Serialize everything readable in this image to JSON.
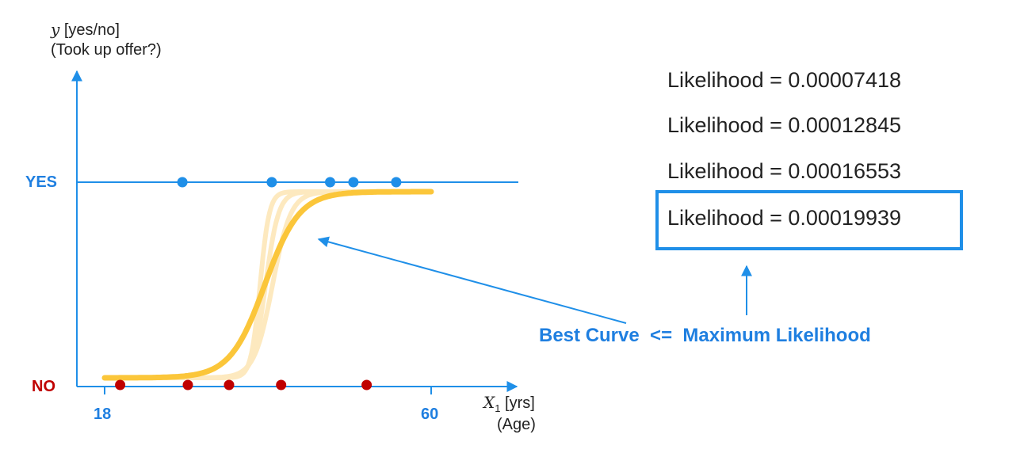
{
  "chart_data": {
    "type": "scatter",
    "title": "",
    "ylabel": {
      "variable": "y",
      "unit": "[yes/no]",
      "description": "(Took up offer?)"
    },
    "xlabel": {
      "variable": "X",
      "subscript": "1",
      "unit": "[yrs]",
      "description": "(Age)"
    },
    "y_categories": [
      "NO",
      "YES"
    ],
    "x_ticks": [
      "18",
      "60"
    ],
    "xlim": [
      18,
      60
    ],
    "ylim": [
      0,
      1
    ],
    "series": [
      {
        "name": "YES",
        "color": "#1f8fe8",
        "x": [
          28,
          39.5,
          47,
          50,
          55.5
        ],
        "y": [
          1,
          1,
          1,
          1,
          1
        ]
      },
      {
        "name": "NO",
        "color": "#c00000",
        "x": [
          20,
          28.7,
          34,
          40.7,
          51.7
        ],
        "y": [
          0,
          0,
          0,
          0,
          0
        ]
      }
    ],
    "curves": [
      {
        "role": "candidate",
        "midpoint": 38.0,
        "steepness": 1.7
      },
      {
        "role": "candidate",
        "midpoint": 38.7,
        "steepness": 1.2
      },
      {
        "role": "candidate",
        "midpoint": 39.6,
        "steepness": 0.85
      },
      {
        "role": "best",
        "midpoint": 38.6,
        "steepness": 0.45
      }
    ],
    "curve_colors": {
      "candidate": "#fde9bf",
      "best": "#fbc63a"
    },
    "axis_color": "#1f8fe8",
    "grid": false
  },
  "likelihoods": [
    "Likelihood = 0.00007418",
    "Likelihood = 0.00012845",
    "Likelihood = 0.00016553",
    "Likelihood = 0.00019939"
  ],
  "annotation": {
    "text": "Best Curve  <=  Maximum Likelihood",
    "color": "#1f7fe0"
  }
}
